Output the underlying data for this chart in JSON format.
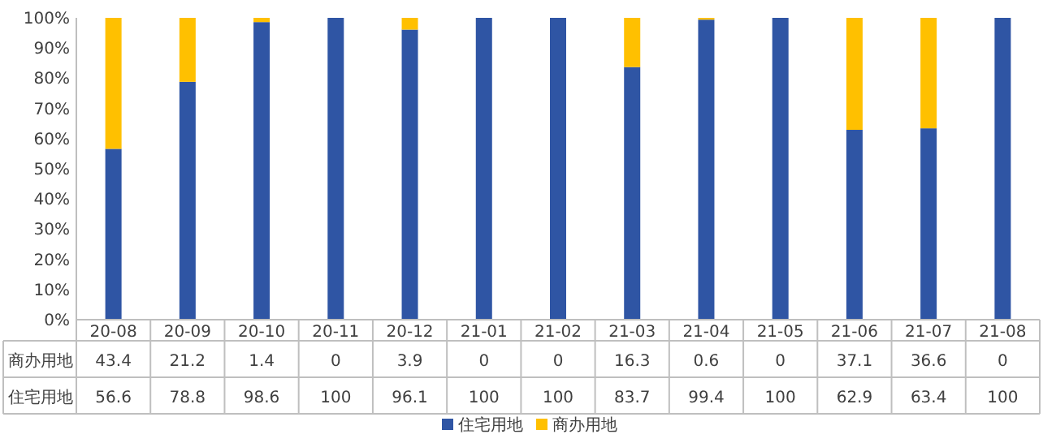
{
  "chart_data": {
    "type": "bar",
    "stacked": true,
    "data_labels": true,
    "legend": "bottom",
    "categories": [
      "20-08",
      "20-09",
      "20-10",
      "20-11",
      "20-12",
      "21-01",
      "21-02",
      "21-03",
      "21-04",
      "21-05",
      "21-06",
      "21-07",
      "21-08"
    ],
    "series": [
      {
        "name": "住宅用地",
        "color": "#2f55a4",
        "values": [
          56.6,
          78.8,
          98.6,
          100,
          96.1,
          100,
          100,
          83.7,
          99.4,
          100,
          62.9,
          63.4,
          100
        ]
      },
      {
        "name": "商办用地",
        "color": "#ffc000",
        "values": [
          43.4,
          21.2,
          1.4,
          0,
          3.9,
          0,
          0,
          16.3,
          0.6,
          0,
          37.1,
          36.6,
          0
        ]
      }
    ],
    "ylim": [
      0,
      100
    ],
    "yticks": [
      {
        "value": 0,
        "label": "0%"
      },
      {
        "value": 10,
        "label": "10%"
      },
      {
        "value": 20,
        "label": "20%"
      },
      {
        "value": 30,
        "label": "30%"
      },
      {
        "value": 40,
        "label": "40%"
      },
      {
        "value": 50,
        "label": "50%"
      },
      {
        "value": 60,
        "label": "60%"
      },
      {
        "value": 70,
        "label": "70%"
      },
      {
        "value": 80,
        "label": "80%"
      },
      {
        "value": 90,
        "label": "90%"
      },
      {
        "value": 100,
        "label": "100%"
      }
    ]
  }
}
